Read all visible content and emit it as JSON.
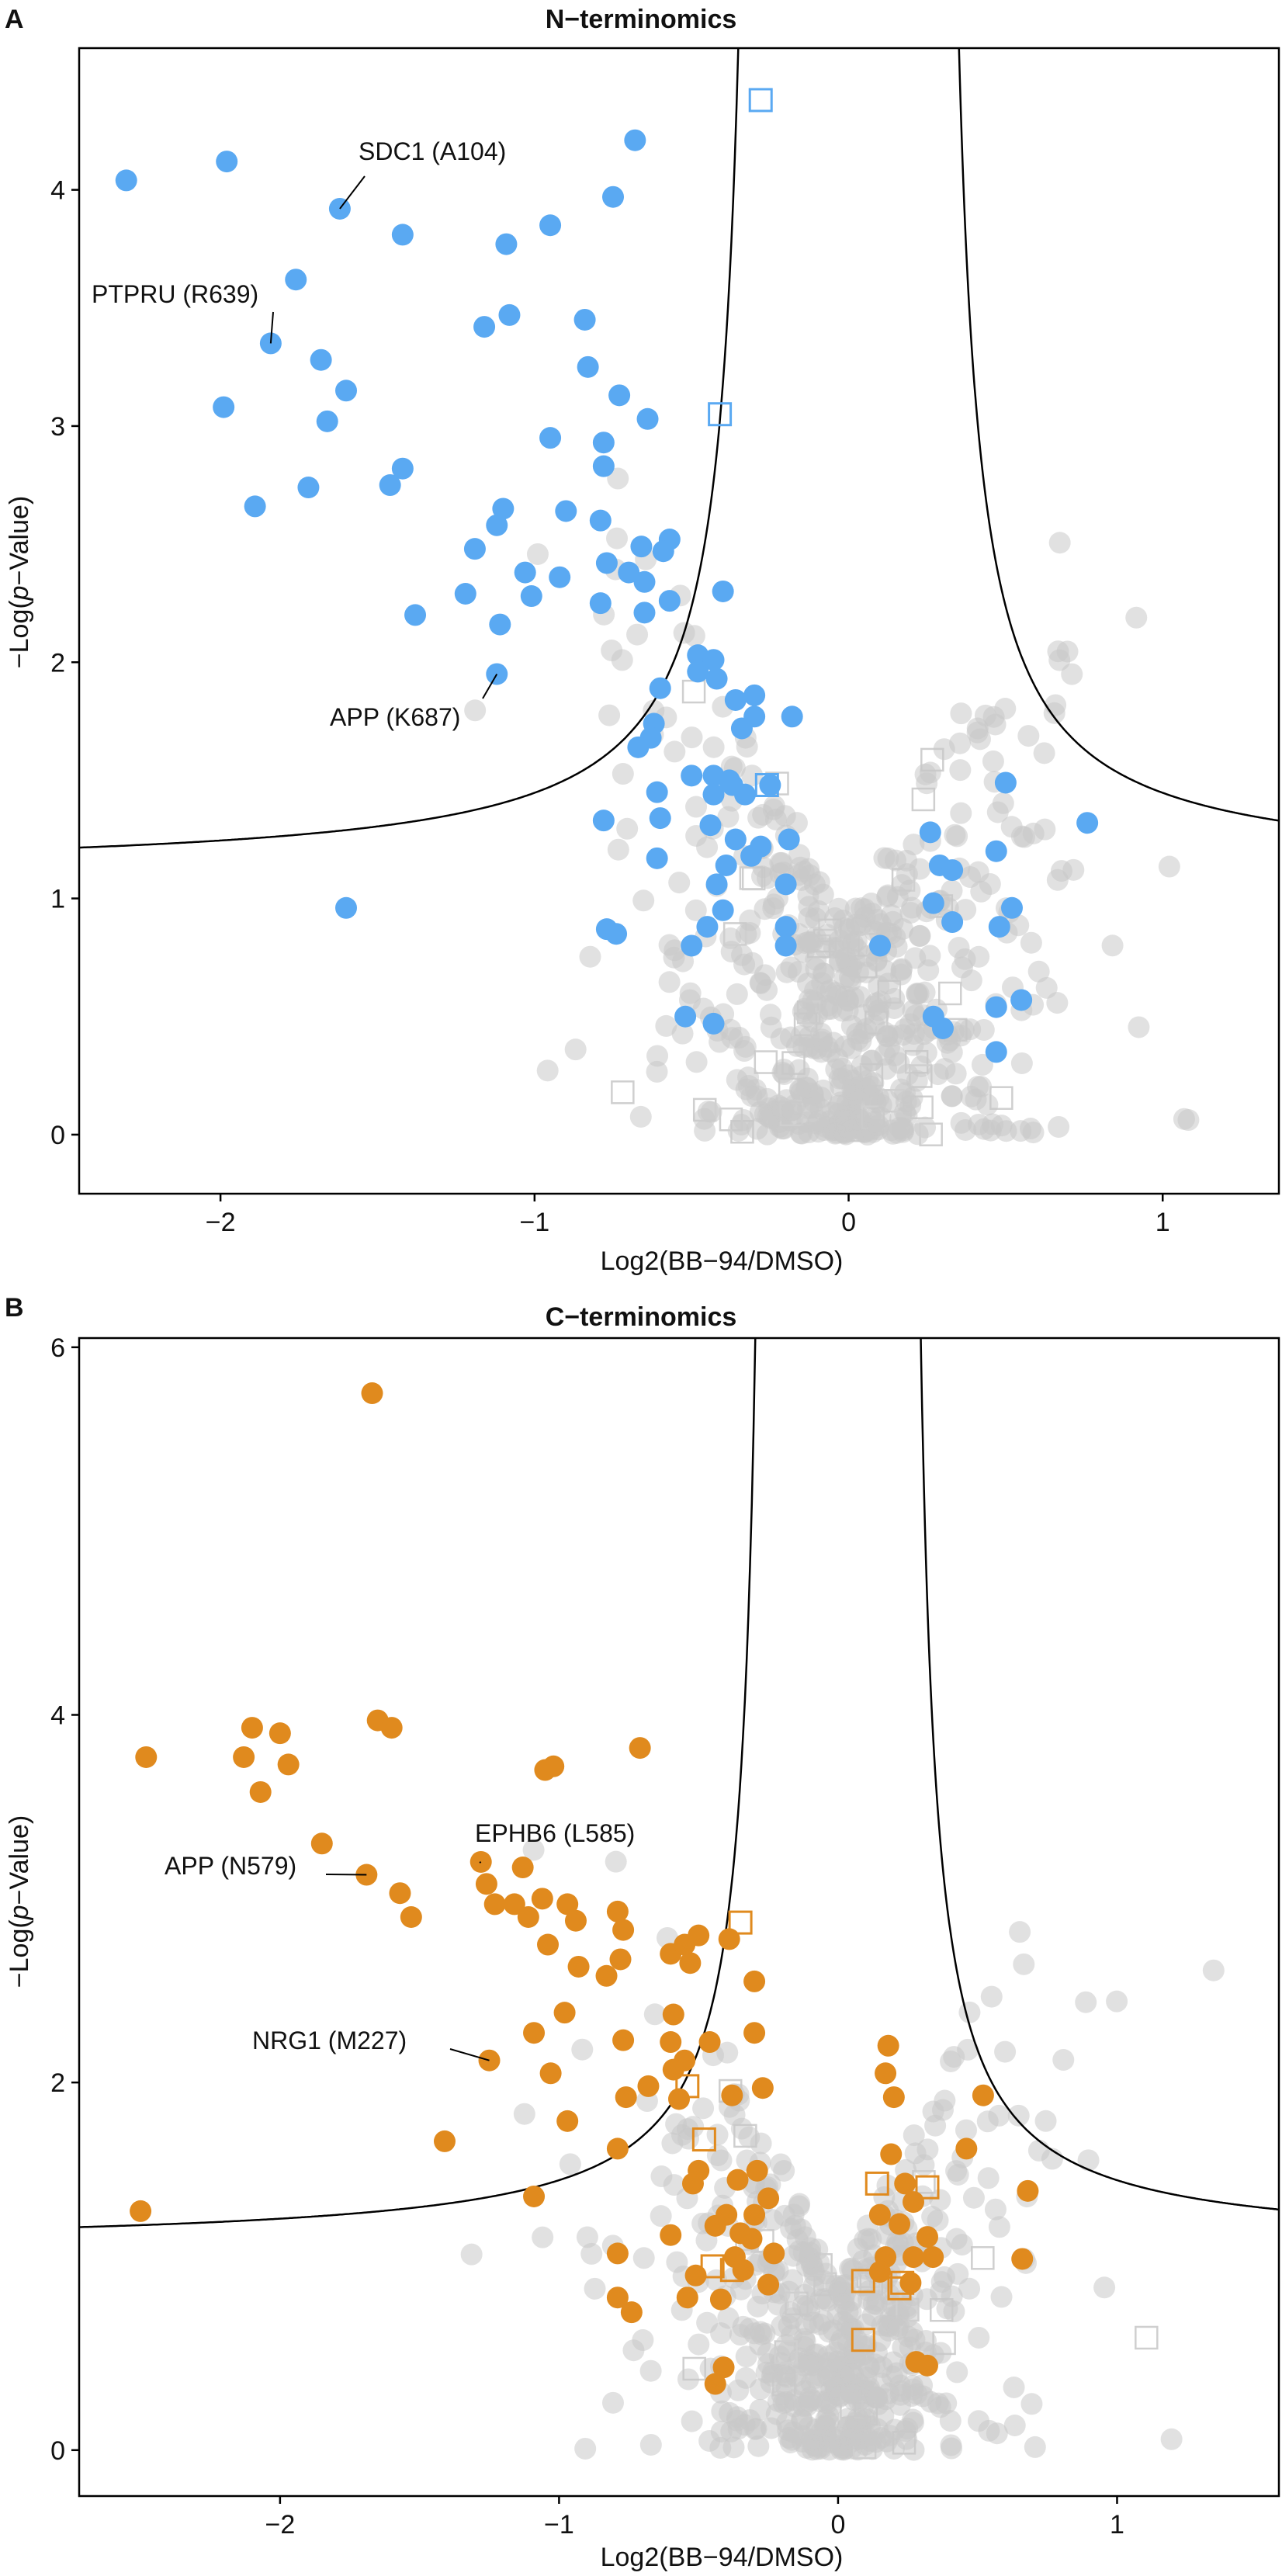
{
  "figure": {
    "colors": {
      "background_points": "#c8c8c8",
      "panel_a_highlight": "#5aa9f2",
      "panel_b_highlight": "#e08a1e",
      "threshold_line": "#000000",
      "frame": "#000000"
    }
  },
  "chart_data": [
    {
      "panel": "A",
      "type": "scatter",
      "title": "N−terminomics",
      "xlabel": "Log2(BB−94/DMSO)",
      "ylabel_prefix": "−Log(",
      "ylabel_italic": "p",
      "ylabel_suffix": "−Value)",
      "xlim": [
        -2.45,
        1.37
      ],
      "ylim": [
        -0.25,
        4.6
      ],
      "x_ticks": [
        -2,
        -1,
        0,
        1
      ],
      "x_tick_labels": [
        "−2",
        "−1",
        "0",
        "1"
      ],
      "y_ticks": [
        0,
        1,
        2,
        3,
        4
      ],
      "y_tick_labels": [
        "0",
        "1",
        "2",
        "3",
        "4"
      ],
      "threshold_curve": {
        "x0": 0.28,
        "c": 0.25,
        "base": 1.1
      },
      "grey_cloud": {
        "seed": 17,
        "count": 600,
        "v_shape_k": 2.6
      },
      "highlighted_points": [
        [
          -2.3,
          4.04
        ],
        [
          -1.98,
          4.12
        ],
        [
          -1.62,
          3.92
        ],
        [
          -1.42,
          3.81
        ],
        [
          -0.68,
          4.21
        ],
        [
          -0.75,
          3.97
        ],
        [
          -0.95,
          3.85
        ],
        [
          -1.09,
          3.77
        ],
        [
          -1.76,
          3.62
        ],
        [
          -1.84,
          3.35
        ],
        [
          -1.68,
          3.28
        ],
        [
          -1.08,
          3.47
        ],
        [
          -1.16,
          3.42
        ],
        [
          -0.84,
          3.45
        ],
        [
          -0.95,
          2.95
        ],
        [
          -0.83,
          3.25
        ],
        [
          -0.73,
          3.13
        ],
        [
          -0.64,
          3.03
        ],
        [
          -1.6,
          3.15
        ],
        [
          -1.66,
          3.02
        ],
        [
          -1.99,
          3.08
        ],
        [
          -0.78,
          2.93
        ],
        [
          -0.78,
          2.83
        ],
        [
          -1.42,
          2.82
        ],
        [
          -1.46,
          2.75
        ],
        [
          -1.72,
          2.74
        ],
        [
          -1.89,
          2.66
        ],
        [
          -1.1,
          2.65
        ],
        [
          -0.9,
          2.64
        ],
        [
          -1.12,
          2.58
        ],
        [
          -0.79,
          2.6
        ],
        [
          -0.66,
          2.49
        ],
        [
          -0.57,
          2.52
        ],
        [
          -0.59,
          2.47
        ],
        [
          -1.19,
          2.48
        ],
        [
          -1.03,
          2.38
        ],
        [
          -0.92,
          2.36
        ],
        [
          -0.77,
          2.42
        ],
        [
          -0.7,
          2.38
        ],
        [
          -0.65,
          2.34
        ],
        [
          -1.22,
          2.29
        ],
        [
          -1.01,
          2.28
        ],
        [
          -1.38,
          2.2
        ],
        [
          -0.57,
          2.26
        ],
        [
          -0.79,
          2.25
        ],
        [
          -1.11,
          2.16
        ],
        [
          -0.65,
          2.21
        ],
        [
          -0.4,
          2.3
        ],
        [
          -1.12,
          1.95
        ],
        [
          -0.48,
          2.03
        ],
        [
          -0.43,
          2.01
        ],
        [
          -0.48,
          1.96
        ],
        [
          -0.6,
          1.89
        ],
        [
          -0.36,
          1.84
        ],
        [
          -0.42,
          1.93
        ],
        [
          -0.3,
          1.86
        ],
        [
          -0.62,
          1.74
        ],
        [
          -0.63,
          1.68
        ],
        [
          -0.67,
          1.64
        ],
        [
          -0.3,
          1.77
        ],
        [
          -0.34,
          1.72
        ],
        [
          -0.18,
          1.77
        ],
        [
          -0.5,
          1.52
        ],
        [
          -0.43,
          1.52
        ],
        [
          -0.38,
          1.5
        ],
        [
          -0.37,
          1.48
        ],
        [
          -0.61,
          1.45
        ],
        [
          -0.25,
          1.48
        ],
        [
          -0.43,
          1.44
        ],
        [
          -0.33,
          1.44
        ],
        [
          -0.78,
          1.33
        ],
        [
          -0.6,
          1.34
        ],
        [
          -0.44,
          1.31
        ],
        [
          -0.36,
          1.25
        ],
        [
          -0.28,
          1.22
        ],
        [
          -0.19,
          1.25
        ],
        [
          -0.61,
          1.17
        ],
        [
          -0.39,
          1.14
        ],
        [
          -0.31,
          1.18
        ],
        [
          -0.42,
          1.06
        ],
        [
          -0.2,
          1.06
        ],
        [
          -0.77,
          0.87
        ],
        [
          -0.74,
          0.85
        ],
        [
          -0.4,
          0.95
        ],
        [
          -0.45,
          0.88
        ],
        [
          -0.5,
          0.8
        ],
        [
          -0.2,
          0.88
        ],
        [
          -0.2,
          0.8
        ],
        [
          0.5,
          1.49
        ],
        [
          0.76,
          1.32
        ],
        [
          0.26,
          1.28
        ],
        [
          0.47,
          1.2
        ],
        [
          0.29,
          1.14
        ],
        [
          0.33,
          1.12
        ],
        [
          0.52,
          0.96
        ],
        [
          0.27,
          0.98
        ],
        [
          0.48,
          0.88
        ],
        [
          0.1,
          0.8
        ],
        [
          0.33,
          0.9
        ],
        [
          -1.6,
          0.96
        ],
        [
          0.55,
          0.57
        ],
        [
          0.47,
          0.54
        ],
        [
          0.47,
          0.35
        ],
        [
          -0.52,
          0.5
        ],
        [
          -0.43,
          0.47
        ],
        [
          0.27,
          0.5
        ],
        [
          0.3,
          0.45
        ]
      ],
      "highlighted_squares": [
        [
          -0.28,
          4.38
        ],
        [
          -0.41,
          3.05
        ],
        [
          -0.26,
          1.48
        ]
      ],
      "annotations": [
        {
          "label": "SDC1 (A104)",
          "x": -1.62,
          "y": 3.92
        },
        {
          "label": "PTPRU (R639)",
          "x": -1.84,
          "y": 3.35
        },
        {
          "label": "APP (K687)",
          "x": -1.12,
          "y": 1.95
        }
      ]
    },
    {
      "panel": "B",
      "type": "scatter",
      "title": "C−terminomics",
      "xlabel": "Log2(BB−94/DMSO)",
      "ylabel_prefix": "−Log(",
      "ylabel_italic": "p",
      "ylabel_suffix": "−Value)",
      "xlim": [
        -2.72,
        1.58
      ],
      "ylim": [
        -0.25,
        6.05
      ],
      "x_ticks": [
        -2,
        -1,
        0,
        1
      ],
      "x_tick_labels": [
        "−2",
        "−1",
        "0",
        "1"
      ],
      "y_ticks": [
        0,
        2,
        4,
        6
      ],
      "y_tick_labels": [
        "0",
        "2",
        "4",
        "6"
      ],
      "threshold_curve": {
        "x0": 0.24,
        "c": 0.28,
        "base": 1.1
      },
      "grey_cloud": {
        "seed": 29,
        "count": 560,
        "v_shape_k": 3.2
      },
      "highlighted_points": [
        [
          -1.67,
          5.75
        ],
        [
          -2.48,
          3.77
        ],
        [
          -2.1,
          3.93
        ],
        [
          -2.0,
          3.9
        ],
        [
          -2.13,
          3.77
        ],
        [
          -1.97,
          3.73
        ],
        [
          -2.07,
          3.58
        ],
        [
          -1.65,
          3.97
        ],
        [
          -1.6,
          3.93
        ],
        [
          -1.05,
          3.7
        ],
        [
          -1.02,
          3.72
        ],
        [
          -0.71,
          3.82
        ],
        [
          -1.85,
          3.3
        ],
        [
          -1.69,
          3.13
        ],
        [
          -1.28,
          3.2
        ],
        [
          -1.13,
          3.17
        ],
        [
          -1.26,
          3.08
        ],
        [
          -1.16,
          2.97
        ],
        [
          -1.06,
          3.0
        ],
        [
          -0.97,
          2.97
        ],
        [
          -0.94,
          2.88
        ],
        [
          -0.79,
          2.93
        ],
        [
          -0.77,
          2.83
        ],
        [
          -1.57,
          3.03
        ],
        [
          -1.53,
          2.9
        ],
        [
          -1.23,
          2.97
        ],
        [
          -1.11,
          2.9
        ],
        [
          -1.04,
          2.75
        ],
        [
          -0.93,
          2.63
        ],
        [
          -0.83,
          2.58
        ],
        [
          -0.78,
          2.67
        ],
        [
          -0.6,
          2.7
        ],
        [
          -0.53,
          2.65
        ],
        [
          -0.55,
          2.75
        ],
        [
          -0.5,
          2.8
        ],
        [
          -1.25,
          2.12
        ],
        [
          -1.03,
          2.05
        ],
        [
          -1.09,
          2.27
        ],
        [
          -0.98,
          2.38
        ],
        [
          -0.77,
          2.23
        ],
        [
          -0.59,
          2.37
        ],
        [
          -0.6,
          2.22
        ],
        [
          -0.55,
          2.12
        ],
        [
          -0.59,
          2.07
        ],
        [
          -0.46,
          2.22
        ],
        [
          -0.39,
          2.78
        ],
        [
          -0.3,
          2.55
        ],
        [
          -0.3,
          2.27
        ],
        [
          -0.38,
          1.93
        ],
        [
          -0.27,
          1.97
        ],
        [
          -0.68,
          1.98
        ],
        [
          -0.57,
          1.91
        ],
        [
          -0.76,
          1.92
        ],
        [
          -0.79,
          1.64
        ],
        [
          -0.52,
          1.45
        ],
        [
          -0.5,
          1.52
        ],
        [
          -0.36,
          1.47
        ],
        [
          -0.29,
          1.52
        ],
        [
          -0.25,
          1.37
        ],
        [
          -0.4,
          1.28
        ],
        [
          -0.44,
          1.22
        ],
        [
          -0.3,
          1.28
        ],
        [
          -0.35,
          1.18
        ],
        [
          -0.6,
          1.17
        ],
        [
          -1.41,
          1.68
        ],
        [
          -0.97,
          1.79
        ],
        [
          -2.5,
          1.3
        ],
        [
          -1.09,
          1.38
        ],
        [
          -0.79,
          1.07
        ],
        [
          -0.79,
          0.83
        ],
        [
          -0.74,
          0.75
        ],
        [
          -0.51,
          0.95
        ],
        [
          -0.54,
          0.83
        ],
        [
          -0.42,
          0.82
        ],
        [
          -0.37,
          1.05
        ],
        [
          -0.34,
          0.98
        ],
        [
          -0.25,
          0.9
        ],
        [
          -0.31,
          1.15
        ],
        [
          -0.23,
          1.07
        ],
        [
          0.18,
          2.2
        ],
        [
          0.17,
          2.05
        ],
        [
          0.2,
          1.92
        ],
        [
          0.52,
          1.93
        ],
        [
          0.46,
          1.64
        ],
        [
          0.19,
          1.61
        ],
        [
          0.24,
          1.45
        ],
        [
          0.27,
          1.35
        ],
        [
          0.15,
          1.28
        ],
        [
          0.22,
          1.23
        ],
        [
          0.32,
          1.16
        ],
        [
          0.17,
          1.05
        ],
        [
          0.27,
          1.05
        ],
        [
          0.34,
          1.05
        ],
        [
          0.15,
          0.97
        ],
        [
          0.26,
          0.91
        ],
        [
          0.66,
          1.04
        ],
        [
          0.68,
          1.41
        ],
        [
          -0.44,
          0.36
        ],
        [
          -0.41,
          0.45
        ],
        [
          0.28,
          0.48
        ],
        [
          0.32,
          0.46
        ]
      ],
      "highlighted_squares": [
        [
          -0.35,
          2.87
        ],
        [
          -0.54,
          1.98
        ],
        [
          -0.48,
          1.69
        ],
        [
          -0.45,
          1.0
        ],
        [
          -0.38,
          0.98
        ],
        [
          0.14,
          1.45
        ],
        [
          0.32,
          1.43
        ],
        [
          0.09,
          0.92
        ],
        [
          0.22,
          0.88
        ],
        [
          0.09,
          0.6
        ],
        [
          0.23,
          0.91
        ]
      ],
      "annotations": [
        {
          "label": "APP (N579)",
          "x": -1.69,
          "y": 3.13
        },
        {
          "label": "EPHB6 (L585)",
          "x": -1.28,
          "y": 3.2
        },
        {
          "label": "NRG1 (M227)",
          "x": -1.25,
          "y": 2.12
        }
      ]
    }
  ]
}
